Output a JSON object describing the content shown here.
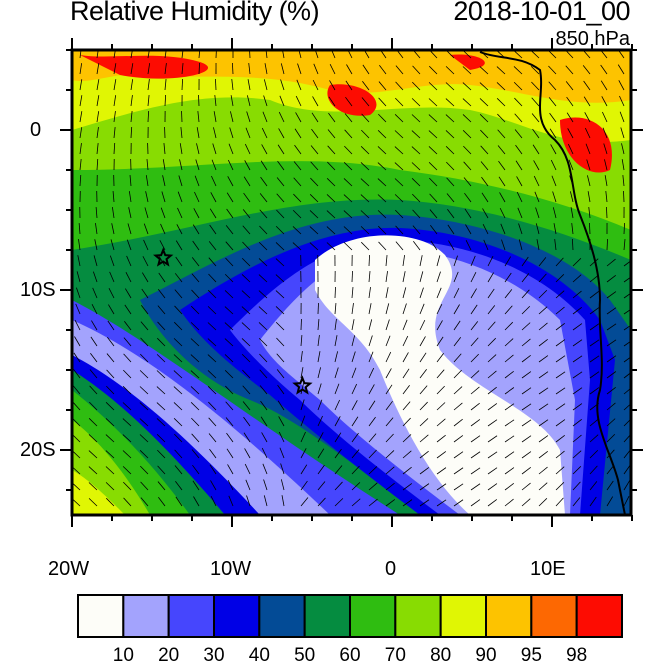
{
  "header": {
    "title": "Relative Humidity (%)",
    "time": "2018-10-01_00",
    "level": "850 hPa"
  },
  "map": {
    "extent": {
      "lon": [
        -20,
        15
      ],
      "lat": [
        -24,
        5
      ]
    },
    "x_ticks": [
      "20W",
      "10W",
      "0",
      "10E"
    ],
    "y_ticks": [
      "0",
      "10S",
      "20S"
    ],
    "markers": [
      {
        "type": "star",
        "lon": -14.3,
        "lat": -8
      },
      {
        "type": "star",
        "lon": -5.6,
        "lat": -16
      }
    ],
    "overlay": "wind-barbs"
  },
  "colorbar": {
    "colors": [
      "#fdfdf8",
      "#a3a3fd",
      "#4646fd",
      "#0000e6",
      "#034b96",
      "#058c40",
      "#2fbd11",
      "#88dc02",
      "#e0f604",
      "#fdc300",
      "#fd6802",
      "#fd0c02"
    ],
    "labels": [
      "10",
      "20",
      "30",
      "40",
      "50",
      "60",
      "70",
      "80",
      "90",
      "95",
      "98"
    ]
  }
}
